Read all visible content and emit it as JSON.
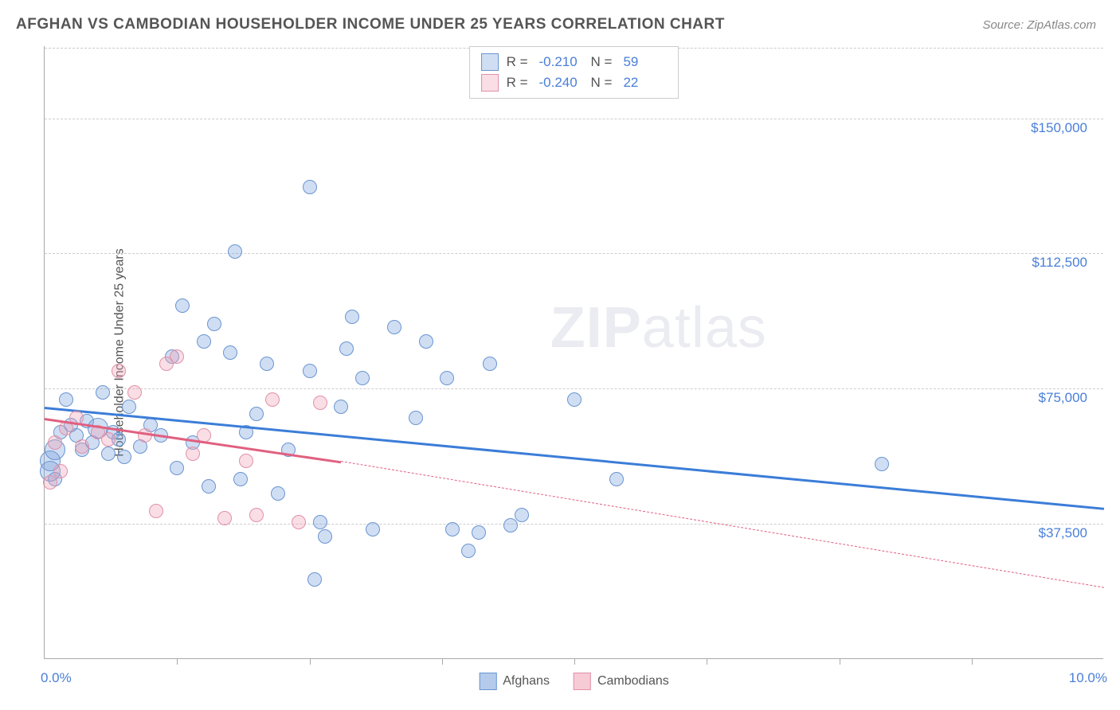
{
  "title": "AFGHAN VS CAMBODIAN HOUSEHOLDER INCOME UNDER 25 YEARS CORRELATION CHART",
  "source": "Source: ZipAtlas.com",
  "watermark_zip": "ZIP",
  "watermark_atlas": "atlas",
  "chart": {
    "type": "scatter",
    "ylabel": "Householder Income Under 25 years",
    "xlim": [
      0,
      10
    ],
    "ylim": [
      0,
      170000
    ],
    "xtick_labels": {
      "left": "0.0%",
      "right": "10.0%"
    },
    "xtick_marks": [
      1.25,
      2.5,
      3.75,
      5.0,
      6.25,
      7.5,
      8.75
    ],
    "ytick_labels": [
      {
        "v": 37500,
        "label": "$37,500"
      },
      {
        "v": 75000,
        "label": "$75,000"
      },
      {
        "v": 112500,
        "label": "$112,500"
      },
      {
        "v": 150000,
        "label": "$150,000"
      }
    ],
    "grid_color": "#cccccc",
    "background_color": "#ffffff",
    "series": [
      {
        "name": "Afghans",
        "fill": "rgba(120,160,220,0.35)",
        "stroke": "#6a95d0",
        "marker_r_small": 9,
        "marker_r_large": 13,
        "trend_color": "#3b7dd8",
        "trend_solid": {
          "x1": 0,
          "y1": 70000,
          "x2": 10,
          "y2": 42000
        },
        "R": "-0.210",
        "N": "59",
        "points": [
          {
            "x": 0.05,
            "y": 55000,
            "r": 13
          },
          {
            "x": 0.05,
            "y": 52000,
            "r": 13
          },
          {
            "x": 0.1,
            "y": 58000,
            "r": 13
          },
          {
            "x": 0.1,
            "y": 50000,
            "r": 9
          },
          {
            "x": 0.15,
            "y": 63000,
            "r": 9
          },
          {
            "x": 0.2,
            "y": 72000,
            "r": 9
          },
          {
            "x": 0.25,
            "y": 65000,
            "r": 9
          },
          {
            "x": 0.3,
            "y": 62000,
            "r": 9
          },
          {
            "x": 0.35,
            "y": 58000,
            "r": 9
          },
          {
            "x": 0.4,
            "y": 66000,
            "r": 9
          },
          {
            "x": 0.45,
            "y": 60000,
            "r": 9
          },
          {
            "x": 0.5,
            "y": 64000,
            "r": 13
          },
          {
            "x": 0.55,
            "y": 74000,
            "r": 9
          },
          {
            "x": 0.6,
            "y": 57000,
            "r": 9
          },
          {
            "x": 0.65,
            "y": 63000,
            "r": 9
          },
          {
            "x": 0.7,
            "y": 61000,
            "r": 9
          },
          {
            "x": 0.75,
            "y": 56000,
            "r": 9
          },
          {
            "x": 0.8,
            "y": 70000,
            "r": 9
          },
          {
            "x": 0.9,
            "y": 59000,
            "r": 9
          },
          {
            "x": 1.0,
            "y": 65000,
            "r": 9
          },
          {
            "x": 1.1,
            "y": 62000,
            "r": 9
          },
          {
            "x": 1.2,
            "y": 84000,
            "r": 9
          },
          {
            "x": 1.25,
            "y": 53000,
            "r": 9
          },
          {
            "x": 1.3,
            "y": 98000,
            "r": 9
          },
          {
            "x": 1.4,
            "y": 60000,
            "r": 9
          },
          {
            "x": 1.5,
            "y": 88000,
            "r": 9
          },
          {
            "x": 1.55,
            "y": 48000,
            "r": 9
          },
          {
            "x": 1.6,
            "y": 93000,
            "r": 9
          },
          {
            "x": 1.75,
            "y": 85000,
            "r": 9
          },
          {
            "x": 1.8,
            "y": 113000,
            "r": 9
          },
          {
            "x": 1.85,
            "y": 50000,
            "r": 9
          },
          {
            "x": 1.9,
            "y": 63000,
            "r": 9
          },
          {
            "x": 2.0,
            "y": 68000,
            "r": 9
          },
          {
            "x": 2.1,
            "y": 82000,
            "r": 9
          },
          {
            "x": 2.2,
            "y": 46000,
            "r": 9
          },
          {
            "x": 2.3,
            "y": 58000,
            "r": 9
          },
          {
            "x": 2.5,
            "y": 131000,
            "r": 9
          },
          {
            "x": 2.5,
            "y": 80000,
            "r": 9
          },
          {
            "x": 2.55,
            "y": 22000,
            "r": 9
          },
          {
            "x": 2.6,
            "y": 38000,
            "r": 9
          },
          {
            "x": 2.65,
            "y": 34000,
            "r": 9
          },
          {
            "x": 2.8,
            "y": 70000,
            "r": 9
          },
          {
            "x": 2.85,
            "y": 86000,
            "r": 9
          },
          {
            "x": 2.9,
            "y": 95000,
            "r": 9
          },
          {
            "x": 3.0,
            "y": 78000,
            "r": 9
          },
          {
            "x": 3.1,
            "y": 36000,
            "r": 9
          },
          {
            "x": 3.3,
            "y": 92000,
            "r": 9
          },
          {
            "x": 3.5,
            "y": 67000,
            "r": 9
          },
          {
            "x": 3.6,
            "y": 88000,
            "r": 9
          },
          {
            "x": 3.8,
            "y": 78000,
            "r": 9
          },
          {
            "x": 3.85,
            "y": 36000,
            "r": 9
          },
          {
            "x": 4.0,
            "y": 30000,
            "r": 9
          },
          {
            "x": 4.1,
            "y": 35000,
            "r": 9
          },
          {
            "x": 4.2,
            "y": 82000,
            "r": 9
          },
          {
            "x": 4.4,
            "y": 37000,
            "r": 9
          },
          {
            "x": 4.5,
            "y": 40000,
            "r": 9
          },
          {
            "x": 5.0,
            "y": 72000,
            "r": 9
          },
          {
            "x": 5.4,
            "y": 50000,
            "r": 9
          },
          {
            "x": 7.9,
            "y": 54000,
            "r": 9
          }
        ]
      },
      {
        "name": "Cambodians",
        "fill": "rgba(240,160,180,0.35)",
        "stroke": "#e090a8",
        "marker_r_small": 9,
        "marker_r_large": 13,
        "trend_color": "#e06080",
        "trend_solid": {
          "x1": 0,
          "y1": 67000,
          "x2": 2.8,
          "y2": 55000
        },
        "trend_dash": {
          "x1": 2.8,
          "y1": 55000,
          "x2": 10,
          "y2": 20000
        },
        "R": "-0.240",
        "N": "22",
        "points": [
          {
            "x": 0.05,
            "y": 49000,
            "r": 9
          },
          {
            "x": 0.1,
            "y": 60000,
            "r": 9
          },
          {
            "x": 0.15,
            "y": 52000,
            "r": 9
          },
          {
            "x": 0.2,
            "y": 64000,
            "r": 9
          },
          {
            "x": 0.3,
            "y": 67000,
            "r": 9
          },
          {
            "x": 0.35,
            "y": 59000,
            "r": 9
          },
          {
            "x": 0.5,
            "y": 63000,
            "r": 9
          },
          {
            "x": 0.6,
            "y": 61000,
            "r": 9
          },
          {
            "x": 0.7,
            "y": 80000,
            "r": 9
          },
          {
            "x": 0.85,
            "y": 74000,
            "r": 9
          },
          {
            "x": 0.95,
            "y": 62000,
            "r": 9
          },
          {
            "x": 1.05,
            "y": 41000,
            "r": 9
          },
          {
            "x": 1.15,
            "y": 82000,
            "r": 9
          },
          {
            "x": 1.25,
            "y": 84000,
            "r": 9
          },
          {
            "x": 1.4,
            "y": 57000,
            "r": 9
          },
          {
            "x": 1.5,
            "y": 62000,
            "r": 9
          },
          {
            "x": 1.7,
            "y": 39000,
            "r": 9
          },
          {
            "x": 1.9,
            "y": 55000,
            "r": 9
          },
          {
            "x": 2.0,
            "y": 40000,
            "r": 9
          },
          {
            "x": 2.15,
            "y": 72000,
            "r": 9
          },
          {
            "x": 2.4,
            "y": 38000,
            "r": 9
          },
          {
            "x": 2.6,
            "y": 71000,
            "r": 9
          }
        ]
      }
    ],
    "legend_top_labels": {
      "R": "R =",
      "N": "N ="
    },
    "legend_bottom": [
      {
        "label": "Afghans",
        "fill": "rgba(120,160,220,0.55)",
        "stroke": "#6a95d0"
      },
      {
        "label": "Cambodians",
        "fill": "rgba(240,160,180,0.55)",
        "stroke": "#e090a8"
      }
    ]
  }
}
